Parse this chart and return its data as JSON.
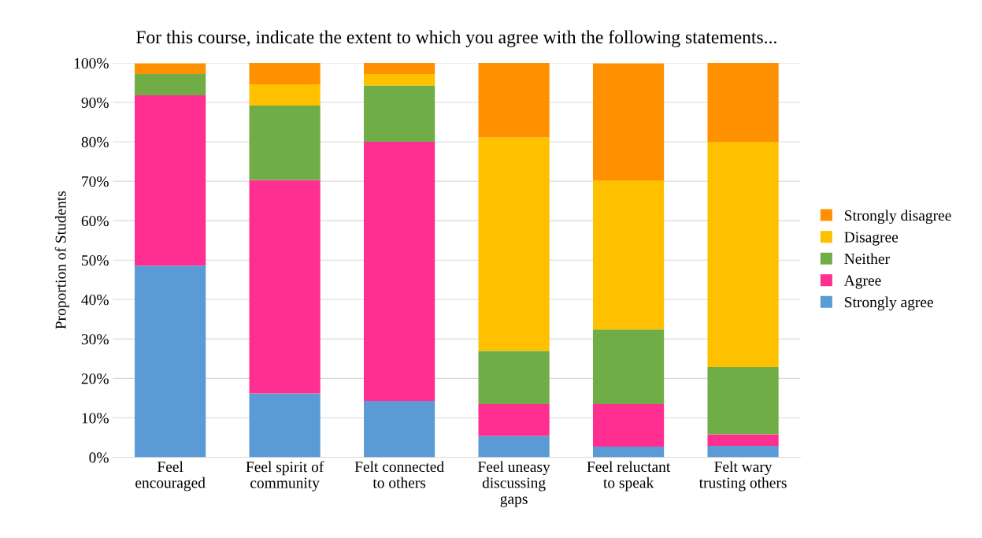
{
  "chart_data": {
    "type": "bar",
    "stacked": true,
    "title": "For this course, indicate the extent to which you agree with the following statements...",
    "ylabel": "Proportion of Students",
    "categories": [
      "Feel\nencouraged",
      "Feel spirit of\ncommunity",
      "Felt connected\nto others",
      "Feel uneasy\ndiscussing\ngaps",
      "Feel reluctant\nto speak",
      "Felt wary\ntrusting others"
    ],
    "series": [
      {
        "name": "Strongly agree",
        "color": "#5b9bd5",
        "values": [
          48.6,
          16.2,
          14.3,
          5.4,
          2.7,
          2.9
        ]
      },
      {
        "name": "Agree",
        "color": "#ff2f92",
        "values": [
          43.2,
          54.1,
          65.7,
          8.1,
          10.8,
          2.9
        ]
      },
      {
        "name": "Neither",
        "color": "#70ad47",
        "values": [
          5.4,
          18.9,
          14.3,
          13.5,
          18.9,
          17.1
        ]
      },
      {
        "name": "Disagree",
        "color": "#ffc000",
        "values": [
          0,
          5.4,
          2.9,
          54.1,
          37.8,
          57.1
        ]
      },
      {
        "name": "Strongly disagree",
        "color": "#ff9100",
        "values": [
          2.7,
          5.4,
          2.9,
          18.9,
          29.7,
          20.0
        ]
      }
    ],
    "ylim": [
      0,
      100
    ],
    "yticks": [
      {
        "value": 0,
        "label": "0%"
      },
      {
        "value": 10,
        "label": "10%"
      },
      {
        "value": 20,
        "label": "20%"
      },
      {
        "value": 30,
        "label": "30%"
      },
      {
        "value": 40,
        "label": "40%"
      },
      {
        "value": 50,
        "label": "50%"
      },
      {
        "value": 60,
        "label": "60%"
      },
      {
        "value": 70,
        "label": "70%"
      },
      {
        "value": 80,
        "label": "80%"
      },
      {
        "value": 90,
        "label": "90%"
      },
      {
        "value": 100,
        "label": "100%"
      }
    ],
    "grid": "y",
    "legend": "right"
  }
}
